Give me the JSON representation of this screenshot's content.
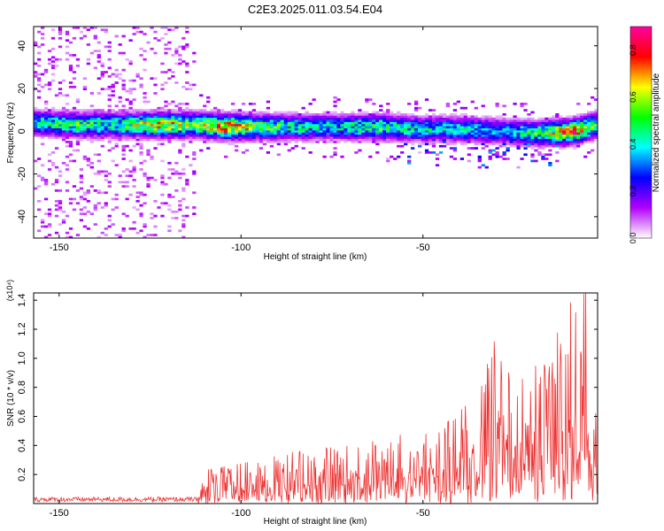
{
  "figure": {
    "title": "C2E3.2025.011.03.54.E04"
  },
  "chart_data": [
    {
      "type": "heatmap",
      "xlabel": "Height of straight line (km)",
      "ylabel": "Frequency (Hz)",
      "xlim": [
        -157,
        -2
      ],
      "ylim": [
        -50,
        49
      ],
      "x_ticks": [
        -150,
        -100,
        -50
      ],
      "y_ticks": [
        -40,
        -20,
        0,
        20,
        40
      ],
      "grid": false,
      "colorbar": {
        "label": "Normalized spectral amplitude",
        "range": [
          0.0,
          0.9
        ],
        "ticks": [
          "0.0",
          "0.2",
          "0.4",
          "0.6",
          "0.8"
        ],
        "colormap": [
          "#ffffff",
          "#b200ff",
          "#0000ff",
          "#00ffff",
          "#00ff00",
          "#ffff00",
          "#ff0000",
          "#ff00a0"
        ]
      },
      "ridge": [
        {
          "x": -157,
          "freq": 4,
          "peak": 0.45
        },
        {
          "x": -145,
          "freq": 3,
          "peak": 0.55
        },
        {
          "x": -135,
          "freq": 3,
          "peak": 0.5
        },
        {
          "x": -122,
          "freq": 3,
          "peak": 0.75
        },
        {
          "x": -112,
          "freq": 3,
          "peak": 0.6
        },
        {
          "x": -104,
          "freq": 2,
          "peak": 0.85
        },
        {
          "x": -95,
          "freq": 2,
          "peak": 0.6
        },
        {
          "x": -85,
          "freq": 2,
          "peak": 0.5
        },
        {
          "x": -75,
          "freq": 2,
          "peak": 0.45
        },
        {
          "x": -62,
          "freq": 2,
          "peak": 0.55
        },
        {
          "x": -50,
          "freq": 1,
          "peak": 0.45
        },
        {
          "x": -40,
          "freq": 1,
          "peak": 0.45
        },
        {
          "x": -28,
          "freq": 0,
          "peak": 0.4
        },
        {
          "x": -18,
          "freq": -1,
          "peak": 0.55
        },
        {
          "x": -8,
          "freq": 0,
          "peak": 0.85
        },
        {
          "x": -2,
          "freq": 3,
          "peak": 0.5
        }
      ],
      "noise_region": {
        "x_from": -157,
        "x_to": -112,
        "level": 0.1
      }
    },
    {
      "type": "line",
      "xlabel": "Height of straight line (km)",
      "ylabel": "SNR (10 * v/v)",
      "y_multiplier": "(x10⁴)",
      "xlim": [
        -157,
        -2
      ],
      "ylim": [
        0,
        14500
      ],
      "x_ticks": [
        -150,
        -100,
        -50
      ],
      "y_ticks": [
        2000,
        4000,
        6000,
        8000,
        10000,
        12000,
        14000
      ],
      "y_tick_labels": [
        "0.2",
        "0.4",
        "0.6",
        "0.8",
        "1.0",
        "1.2",
        "1.4"
      ],
      "grid": false,
      "series": [
        {
          "color": "#ee3333",
          "envelope": [
            {
              "x": -157,
              "max": 450
            },
            {
              "x": -130,
              "max": 450
            },
            {
              "x": -112,
              "max": 450
            },
            {
              "x": -110,
              "max": 2300
            },
            {
              "x": -95,
              "max": 3000
            },
            {
              "x": -85,
              "max": 3600
            },
            {
              "x": -70,
              "max": 4000
            },
            {
              "x": -55,
              "max": 4800
            },
            {
              "x": -45,
              "max": 5200
            },
            {
              "x": -35,
              "max": 7500
            },
            {
              "x": -30,
              "max": 11500
            },
            {
              "x": -25,
              "max": 8000
            },
            {
              "x": -15,
              "max": 10500
            },
            {
              "x": -10,
              "max": 14000
            },
            {
              "x": -5,
              "max": 14500
            },
            {
              "x": -2,
              "max": 8000
            }
          ]
        }
      ]
    }
  ]
}
